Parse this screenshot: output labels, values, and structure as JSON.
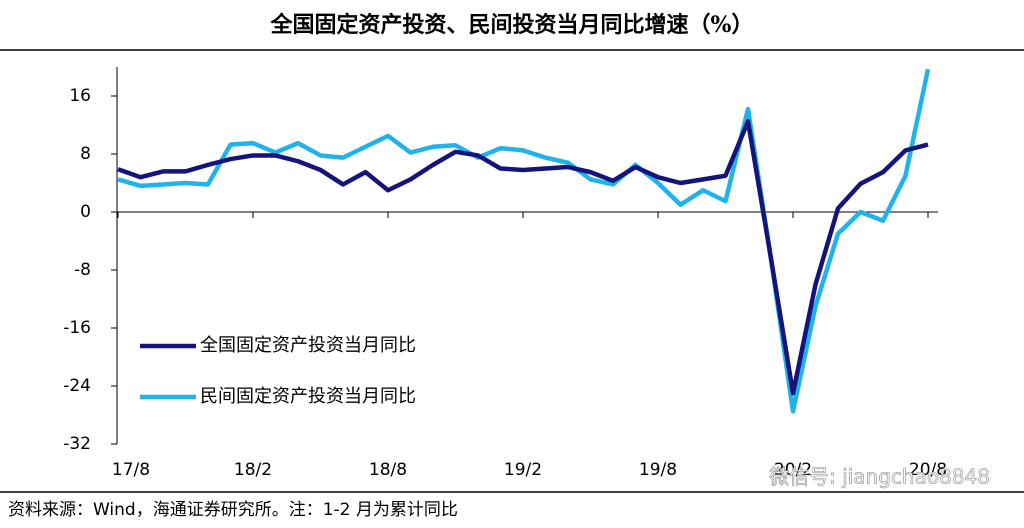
{
  "chart_data": {
    "type": "line",
    "title": "全国固定资产投资、民间投资当月同比增速（%）",
    "categories": [
      "17/8",
      null,
      null,
      null,
      null,
      null,
      "18/2",
      null,
      null,
      null,
      null,
      null,
      "18/8",
      null,
      null,
      null,
      null,
      null,
      "19/2",
      null,
      null,
      null,
      null,
      null,
      "19/8",
      null,
      null,
      null,
      null,
      null,
      "20/2",
      null,
      null,
      null,
      null,
      null,
      "20/8"
    ],
    "series": [
      {
        "name": "全国固定资产投资当月同比",
        "color": "#14147a",
        "values": [
          5.9,
          4.8,
          5.6,
          5.6,
          6.5,
          7.3,
          7.8,
          7.8,
          7.0,
          5.8,
          3.8,
          5.5,
          3.0,
          4.5,
          6.5,
          8.3,
          7.8,
          6.0,
          5.8,
          6.0,
          6.2,
          5.5,
          4.3,
          6.2,
          4.8,
          4.0,
          4.5,
          5.0,
          12.5,
          -6,
          -25,
          -10,
          0.5,
          3.9,
          5.5,
          8.5,
          9.3
        ]
      },
      {
        "name": "民间固定资产投资当月同比",
        "color": "#1fb3ea",
        "values": [
          4.5,
          3.6,
          3.8,
          4.0,
          3.8,
          9.3,
          9.5,
          8.2,
          9.5,
          7.8,
          7.5,
          9.0,
          10.5,
          8.2,
          9.0,
          9.2,
          7.5,
          8.8,
          8.5,
          7.5,
          6.8,
          4.5,
          3.8,
          6.5,
          4.0,
          1.0,
          3.0,
          1.5,
          14.2,
          -6,
          -27.5,
          -13,
          -3,
          0,
          -1.2,
          5,
          19.7
        ]
      }
    ],
    "ylim": [
      -32,
      20
    ],
    "yticks": [
      -32,
      -24,
      -16,
      -8,
      0,
      8,
      16
    ],
    "source": "资料来源：Wind，海通证券研究所。注：1-2 月为累计同比",
    "watermark": "微信号: jiangchao8848"
  }
}
